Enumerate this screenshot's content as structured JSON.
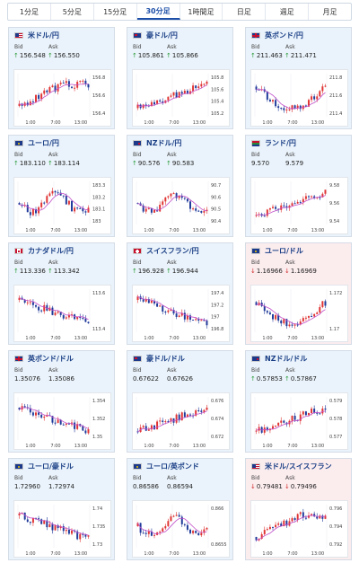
{
  "tabs": [
    "1分足",
    "5分足",
    "15分足",
    "30分足",
    "1時間足",
    "日足",
    "週足",
    "月足"
  ],
  "active_tab": 3,
  "colors": {
    "up_candle": "#e03434",
    "down_candle": "#1f3a9a",
    "ma_line": "#c24fc9",
    "up_arrow": "#2a9a3a",
    "down_arrow": "#d02a2a",
    "card_bg_up": "#eaf3fb",
    "card_bg_down": "#fbecee",
    "pair_text": "#1b3f86"
  },
  "labels": {
    "bid": "Bid",
    "ask": "Ask"
  },
  "cards": [
    {
      "pair": "米ドル/円",
      "flag": "us",
      "dir": "up",
      "bid": "156.548",
      "ask": "156.550",
      "bid_arrow": "↑",
      "ask_arrow": "↑",
      "chart_data": {
        "type": "candlestick",
        "x_ticks": [
          "1:00",
          "7:00",
          "13:00"
        ],
        "y_ticks": [
          "156.8",
          "156.6",
          "156.4"
        ],
        "ylim": [
          156.3,
          156.9
        ],
        "trend": "up-flat"
      }
    },
    {
      "pair": "豪ドル/円",
      "flag": "au",
      "dir": "up",
      "bid": "105.861",
      "ask": "105.866",
      "bid_arrow": "↑",
      "ask_arrow": "↑",
      "chart_data": {
        "type": "candlestick",
        "x_ticks": [
          "1:00",
          "7:00",
          "13:00"
        ],
        "y_ticks": [
          "105.8",
          "105.6",
          "105.4",
          "105.2"
        ],
        "ylim": [
          105.1,
          105.9
        ],
        "trend": "up"
      }
    },
    {
      "pair": "英ポンド/円",
      "flag": "uk",
      "dir": "up",
      "bid": "211.463",
      "ask": "211.471",
      "bid_arrow": "↑",
      "ask_arrow": "↑",
      "chart_data": {
        "type": "candlestick",
        "x_ticks": [
          "1:00",
          "7:00",
          "13:00"
        ],
        "y_ticks": [
          "211.8",
          "211.6",
          "211.4"
        ],
        "ylim": [
          211.3,
          211.9
        ],
        "trend": "down-up"
      }
    },
    {
      "pair": "ユーロ/円",
      "flag": "eu",
      "dir": "up",
      "bid": "183.110",
      "ask": "183.114",
      "bid_arrow": "↑",
      "ask_arrow": "↑",
      "chart_data": {
        "type": "candlestick",
        "x_ticks": [
          "1:00",
          "7:00",
          "13:00"
        ],
        "y_ticks": [
          "183.3",
          "183.2",
          "183.1",
          "183"
        ],
        "ylim": [
          182.95,
          183.35
        ],
        "trend": "mixed"
      }
    },
    {
      "pair": "NZドル/円",
      "flag": "nz",
      "dir": "up",
      "bid": "90.576",
      "ask": "90.583",
      "bid_arrow": "↑",
      "ask_arrow": "↑",
      "chart_data": {
        "type": "candlestick",
        "x_ticks": [
          "1:00",
          "7:00",
          "13:00"
        ],
        "y_ticks": [
          "90.7",
          "90.6",
          "90.5",
          "90.4"
        ],
        "ylim": [
          90.35,
          90.75
        ],
        "trend": "mixed"
      }
    },
    {
      "pair": "ランド/円",
      "flag": "za",
      "dir": "none",
      "bid": "9.570",
      "ask": "9.579",
      "bid_arrow": "",
      "ask_arrow": "",
      "chart_data": {
        "type": "candlestick",
        "x_ticks": [
          "1:00",
          "7:00",
          "13:00"
        ],
        "y_ticks": [
          "9.58",
          "9.56",
          "9.54"
        ],
        "ylim": [
          9.53,
          9.59
        ],
        "trend": "up"
      }
    },
    {
      "pair": "カナダドル/円",
      "flag": "ca",
      "dir": "up",
      "bid": "113.336",
      "ask": "113.342",
      "bid_arrow": "↑",
      "ask_arrow": "↑",
      "chart_data": {
        "type": "candlestick",
        "x_ticks": [
          "1:00",
          "7:00",
          "13:00"
        ],
        "y_ticks": [
          "113.6",
          "113.4"
        ],
        "ylim": [
          113.25,
          113.7
        ],
        "trend": "down"
      }
    },
    {
      "pair": "スイスフラン/円",
      "flag": "ch",
      "dir": "up",
      "bid": "196.928",
      "ask": "196.944",
      "bid_arrow": "↑",
      "ask_arrow": "↑",
      "chart_data": {
        "type": "candlestick",
        "x_ticks": [
          "1:00",
          "7:00",
          "13:00"
        ],
        "y_ticks": [
          "197.4",
          "197.2",
          "197",
          "196.8"
        ],
        "ylim": [
          196.7,
          197.5
        ],
        "trend": "down"
      }
    },
    {
      "pair": "ユーロ/ドル",
      "flag": "eu-us",
      "dir": "down",
      "bid": "1.16966",
      "ask": "1.16969",
      "bid_arrow": "↓",
      "ask_arrow": "↓",
      "chart_data": {
        "type": "candlestick",
        "x_ticks": [
          "1:00",
          "7:00",
          "13:00"
        ],
        "y_ticks": [
          "1.172",
          "1.17"
        ],
        "ylim": [
          1.1685,
          1.173
        ],
        "trend": "down-up"
      }
    },
    {
      "pair": "英ポンド/ドル",
      "flag": "uk-us",
      "dir": "none",
      "bid": "1.35076",
      "ask": "1.35086",
      "bid_arrow": "",
      "ask_arrow": "",
      "chart_data": {
        "type": "candlestick",
        "x_ticks": [
          "1:00",
          "7:00",
          "13:00"
        ],
        "y_ticks": [
          "1.354",
          "1.352",
          "1.35"
        ],
        "ylim": [
          1.349,
          1.355
        ],
        "trend": "down"
      }
    },
    {
      "pair": "豪ドル/ドル",
      "flag": "au-us",
      "dir": "none",
      "bid": "0.67622",
      "ask": "0.67626",
      "bid_arrow": "",
      "ask_arrow": "",
      "chart_data": {
        "type": "candlestick",
        "x_ticks": [
          "1:00",
          "7:00",
          "13:00"
        ],
        "y_ticks": [
          "0.676",
          "0.674",
          "0.672"
        ],
        "ylim": [
          0.6715,
          0.677
        ],
        "trend": "up"
      }
    },
    {
      "pair": "NZドル/ドル",
      "flag": "nz-us",
      "dir": "up",
      "bid": "0.57853",
      "ask": "0.57867",
      "bid_arrow": "↑",
      "ask_arrow": "↑",
      "chart_data": {
        "type": "candlestick",
        "x_ticks": [
          "1:00",
          "7:00",
          "13:00"
        ],
        "y_ticks": [
          "0.579",
          "0.578",
          "0.577"
        ],
        "ylim": [
          0.5765,
          0.5795
        ],
        "trend": "up"
      }
    },
    {
      "pair": "ユーロ/豪ドル",
      "flag": "eu-au",
      "dir": "none",
      "bid": "1.72960",
      "ask": "1.72974",
      "bid_arrow": "",
      "ask_arrow": "",
      "chart_data": {
        "type": "candlestick",
        "x_ticks": [
          "1:00",
          "7:00",
          "13:00"
        ],
        "y_ticks": [
          "1.74",
          "1.735",
          "1.73"
        ],
        "ylim": [
          1.728,
          1.742
        ],
        "trend": "down"
      }
    },
    {
      "pair": "ユーロ/英ポンド",
      "flag": "eu-uk",
      "dir": "none",
      "bid": "0.86586",
      "ask": "0.86594",
      "bid_arrow": "",
      "ask_arrow": "",
      "chart_data": {
        "type": "candlestick",
        "x_ticks": [
          "1:00",
          "7:00",
          "13:00"
        ],
        "y_ticks": [
          "0.866",
          "0.8655"
        ],
        "ylim": [
          0.8652,
          0.8664
        ],
        "trend": "mixed"
      }
    },
    {
      "pair": "米ドル/スイスフラン",
      "flag": "us-ch",
      "dir": "down",
      "bid": "0.79481",
      "ask": "0.79496",
      "bid_arrow": "↓",
      "ask_arrow": "↓",
      "chart_data": {
        "type": "candlestick",
        "x_ticks": [
          "1:00",
          "7:00",
          "13:00"
        ],
        "y_ticks": [
          "0.796",
          "0.794",
          "0.792"
        ],
        "ylim": [
          0.7915,
          0.797
        ],
        "trend": "up-flat"
      }
    }
  ]
}
